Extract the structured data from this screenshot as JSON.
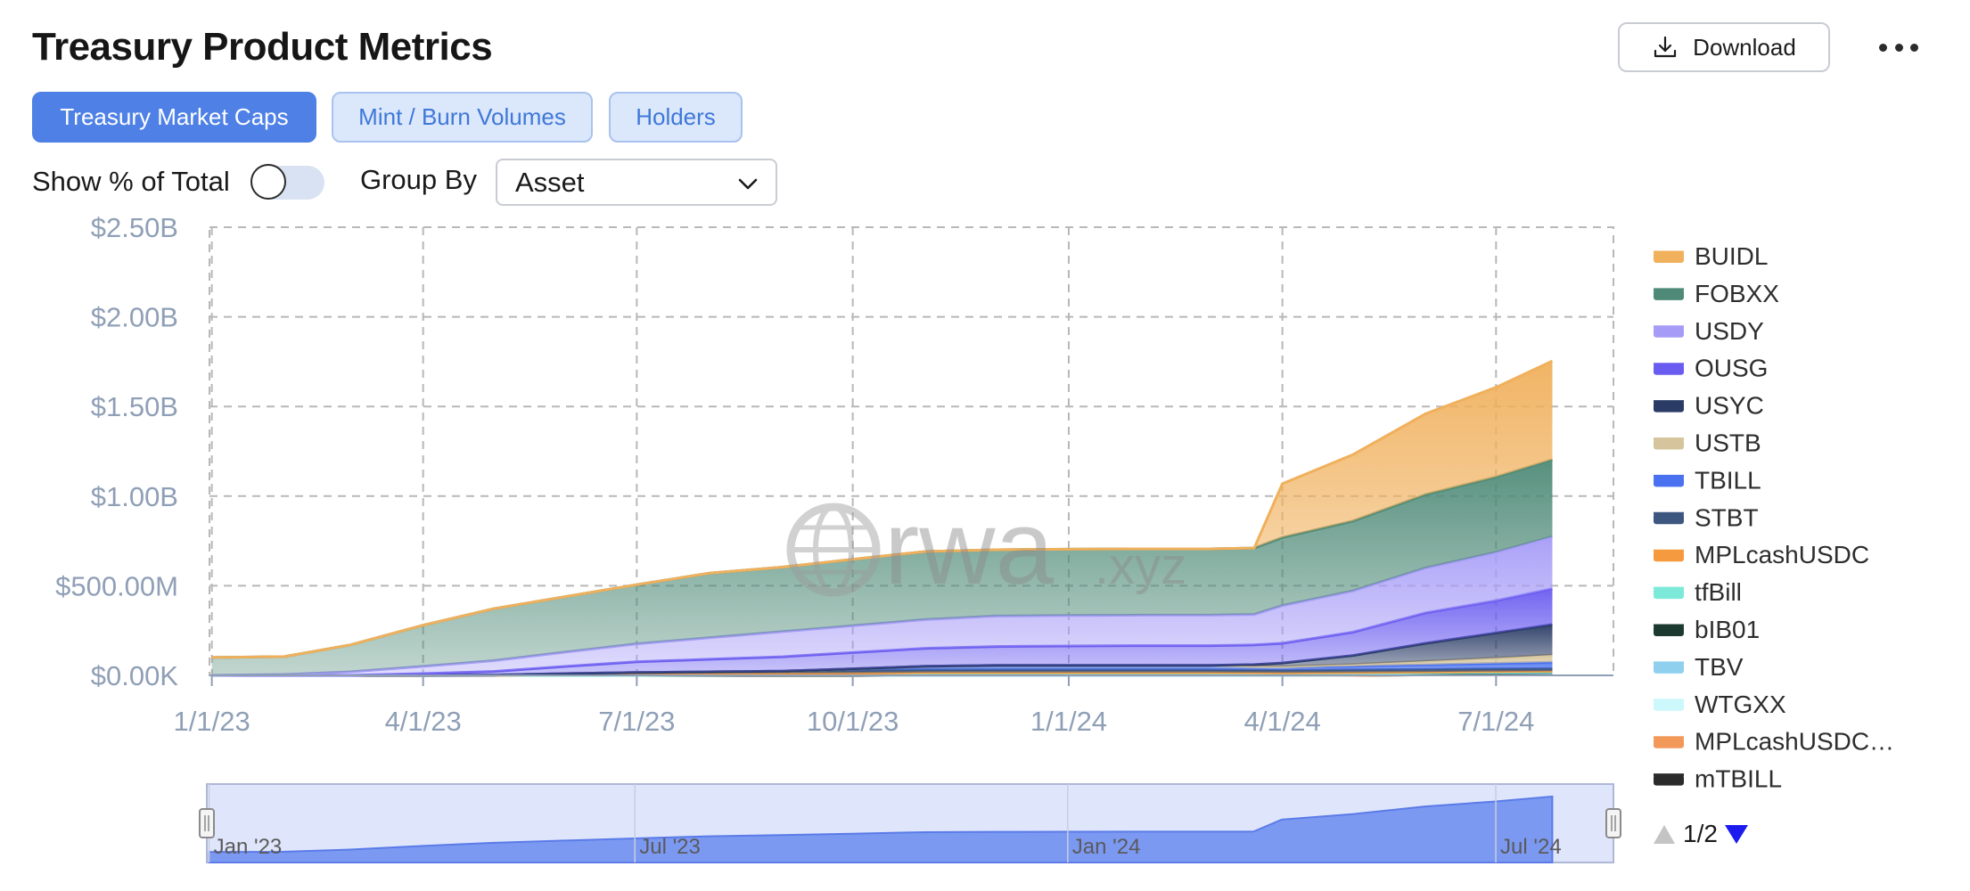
{
  "page": {
    "title": "Treasury Product Metrics"
  },
  "toolbar": {
    "download_label": "Download",
    "more_icon": "more-horizontal-icon",
    "download_icon": "download-icon"
  },
  "tabs": [
    {
      "label": "Treasury Market Caps",
      "active": true
    },
    {
      "label": "Mint / Burn Volumes",
      "active": false
    },
    {
      "label": "Holders",
      "active": false
    }
  ],
  "controls": {
    "toggle_label": "Show % of Total",
    "toggle_on": false,
    "group_by_label": "Group By",
    "group_by_value": "Asset"
  },
  "watermark": {
    "main": "rwa",
    "suffix": ".xyz"
  },
  "pager": {
    "text": "1/2"
  },
  "colors": {
    "accent": "#4e80e6",
    "tab_inactive_bg": "#dbe7fb",
    "axis_text": "#8f9fb6",
    "navigator_fill": "#6b8cf0"
  },
  "chart_data": {
    "type": "area",
    "stacked": true,
    "title": "",
    "xlabel": "",
    "ylabel": "",
    "ylim": [
      0,
      2500000000
    ],
    "y_ticks": [
      {
        "value": 0,
        "label": "$0.00K"
      },
      {
        "value": 500000000,
        "label": "$500.00M"
      },
      {
        "value": 1000000000,
        "label": "$1.00B"
      },
      {
        "value": 1500000000,
        "label": "$1.50B"
      },
      {
        "value": 2000000000,
        "label": "$2.00B"
      },
      {
        "value": 2500000000,
        "label": "$2.50B"
      }
    ],
    "x_range": [
      "2022-12-31",
      "2024-08-20"
    ],
    "x_ticks": [
      {
        "date": "2023-01-01",
        "label": "1/1/23"
      },
      {
        "date": "2023-04-01",
        "label": "4/1/23"
      },
      {
        "date": "2023-07-01",
        "label": "7/1/23"
      },
      {
        "date": "2023-10-01",
        "label": "10/1/23"
      },
      {
        "date": "2024-01-01",
        "label": "1/1/24"
      },
      {
        "date": "2024-04-01",
        "label": "4/1/24"
      },
      {
        "date": "2024-07-01",
        "label": "7/1/24"
      }
    ],
    "grid": true,
    "legend_position": "right",
    "x": [
      "2023-01-01",
      "2023-02-01",
      "2023-03-01",
      "2023-04-01",
      "2023-05-01",
      "2023-06-01",
      "2023-07-01",
      "2023-08-01",
      "2023-09-01",
      "2023-10-01",
      "2023-11-01",
      "2023-12-01",
      "2024-01-01",
      "2024-02-01",
      "2024-03-01",
      "2024-03-20",
      "2024-04-01",
      "2024-05-01",
      "2024-06-01",
      "2024-07-01",
      "2024-07-25"
    ],
    "series": [
      {
        "name": "mTBILL",
        "color": "#2b2b2b",
        "values": [
          0,
          0,
          0,
          0,
          0,
          0,
          0,
          0,
          0,
          0,
          0,
          0,
          0,
          0,
          0,
          0,
          0,
          0,
          3,
          5,
          6
        ]
      },
      {
        "name": "MPLcashUSDC…",
        "color": "#f2995a",
        "values": [
          0,
          0,
          0,
          0,
          0,
          0,
          0,
          0,
          0,
          0,
          0,
          0,
          0,
          0,
          0,
          0,
          0,
          0,
          0,
          0,
          0
        ]
      },
      {
        "name": "WTGXX",
        "color": "#ccf7fb",
        "values": [
          0,
          0,
          0,
          0,
          0,
          0,
          0,
          0,
          0,
          0,
          0,
          0,
          0,
          0,
          0,
          0,
          0,
          2,
          3,
          4,
          5
        ]
      },
      {
        "name": "TBV",
        "color": "#8fd0ef",
        "values": [
          0,
          0,
          0,
          0,
          0,
          0,
          0,
          0,
          0,
          0,
          0,
          0,
          0,
          0,
          0,
          0,
          0,
          0,
          0,
          0,
          0
        ]
      },
      {
        "name": "bIB01",
        "color": "#1c3a30",
        "values": [
          0,
          0,
          0,
          0,
          0,
          0,
          0,
          0,
          0,
          0,
          5,
          5,
          5,
          5,
          5,
          5,
          5,
          5,
          5,
          5,
          5
        ]
      },
      {
        "name": "tfBill",
        "color": "#7de9d9",
        "values": [
          0,
          0,
          0,
          0,
          0,
          0,
          0,
          2,
          3,
          4,
          3,
          3,
          3,
          3,
          3,
          3,
          3,
          3,
          3,
          3,
          3
        ]
      },
      {
        "name": "MPLcashUSDC",
        "color": "#f59a3f",
        "values": [
          0,
          0,
          0,
          0,
          0,
          5,
          8,
          8,
          8,
          8,
          8,
          8,
          8,
          8,
          8,
          7,
          6,
          6,
          5,
          5,
          5
        ]
      },
      {
        "name": "STBT",
        "color": "#3d5780",
        "values": [
          0,
          0,
          0,
          0,
          2,
          5,
          8,
          10,
          13,
          15,
          15,
          15,
          15,
          15,
          15,
          15,
          15,
          15,
          15,
          15,
          15
        ]
      },
      {
        "name": "TBILL",
        "color": "#4a72f0",
        "values": [
          0,
          0,
          0,
          0,
          0,
          0,
          0,
          0,
          0,
          10,
          20,
          25,
          25,
          25,
          25,
          20,
          20,
          20,
          25,
          30,
          35
        ]
      },
      {
        "name": "USTB",
        "color": "#d6c59c",
        "values": [
          0,
          0,
          0,
          0,
          0,
          0,
          0,
          0,
          0,
          0,
          0,
          0,
          0,
          0,
          0,
          0,
          0,
          10,
          20,
          30,
          40
        ]
      },
      {
        "name": "USYC",
        "color": "#2a3c66",
        "values": [
          0,
          0,
          0,
          0,
          0,
          0,
          0,
          0,
          0,
          0,
          0,
          0,
          0,
          0,
          0,
          10,
          20,
          50,
          100,
          140,
          170
        ]
      },
      {
        "name": "OUSG",
        "color": "#6a5cf0",
        "values": [
          0,
          0,
          0,
          10,
          20,
          40,
          60,
          70,
          80,
          90,
          100,
          105,
          108,
          110,
          110,
          110,
          110,
          130,
          170,
          180,
          200
        ]
      },
      {
        "name": "USDY",
        "color": "#a69cf7",
        "values": [
          0,
          5,
          20,
          40,
          60,
          80,
          100,
          120,
          140,
          150,
          160,
          170,
          170,
          170,
          170,
          170,
          210,
          230,
          250,
          270,
          290
        ]
      },
      {
        "name": "FOBXX",
        "color": "#4e8a77",
        "values": [
          100,
          100,
          150,
          230,
          290,
          310,
          330,
          360,
          360,
          370,
          380,
          370,
          370,
          370,
          370,
          370,
          380,
          390,
          410,
          420,
          430
        ]
      },
      {
        "name": "BUIDL",
        "color": "#f0b05c",
        "values": [
          0,
          0,
          0,
          0,
          0,
          0,
          0,
          0,
          0,
          0,
          0,
          0,
          0,
          0,
          0,
          0,
          300,
          370,
          450,
          500,
          550
        ]
      }
    ],
    "legend_order": [
      "BUIDL",
      "FOBXX",
      "USDY",
      "OUSG",
      "USYC",
      "USTB",
      "TBILL",
      "STBT",
      "MPLcashUSDC",
      "tfBill",
      "bIB01",
      "TBV",
      "WTGXX",
      "MPLcashUSDC…",
      "mTBILL"
    ],
    "navigator": {
      "labels": [
        {
          "date": "2023-01-01",
          "label": "Jan '23"
        },
        {
          "date": "2023-07-01",
          "label": "Jul '23"
        },
        {
          "date": "2024-01-01",
          "label": "Jan '24"
        },
        {
          "date": "2024-07-01",
          "label": "Jul '24"
        }
      ]
    }
  }
}
